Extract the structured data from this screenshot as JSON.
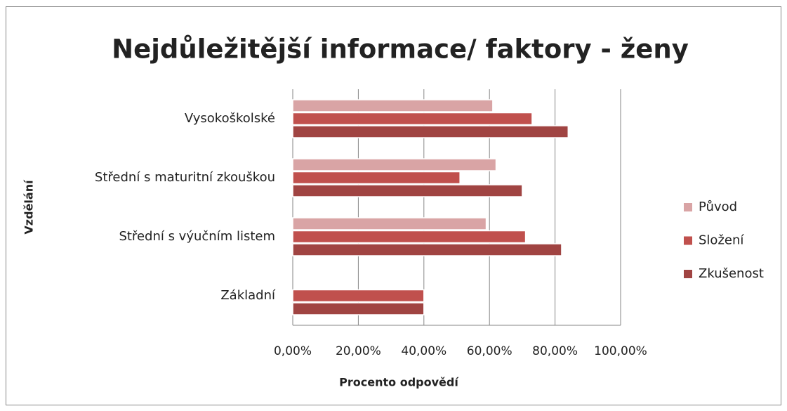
{
  "chart_data": {
    "type": "barh",
    "title": "Nejdůležitější informace/ faktory - ženy",
    "xlabel": "Procento odpovědí",
    "ylabel": "Vzdělání",
    "categories": [
      "Vysokoškolské",
      "Střední s maturitní zkouškou",
      "Střední s výučním listem",
      "Základní"
    ],
    "series": [
      {
        "name": "Původ",
        "color": "#d9a4a5",
        "values": [
          61,
          62,
          59,
          null
        ]
      },
      {
        "name": "Složení",
        "color": "#c0504d",
        "values": [
          73,
          51,
          71,
          40
        ]
      },
      {
        "name": "Zkušenost",
        "color": "#a04442",
        "values": [
          84,
          70,
          82,
          40
        ]
      }
    ],
    "xlim": [
      0,
      100
    ],
    "xticks": [
      {
        "value": 0,
        "label": "0,00%"
      },
      {
        "value": 20,
        "label": "20,00%"
      },
      {
        "value": 40,
        "label": "40,00%"
      },
      {
        "value": 60,
        "label": "60,00%"
      },
      {
        "value": 80,
        "label": "80,00%"
      },
      {
        "value": 100,
        "label": "100,00%"
      }
    ],
    "grid": true,
    "legend": "right"
  }
}
